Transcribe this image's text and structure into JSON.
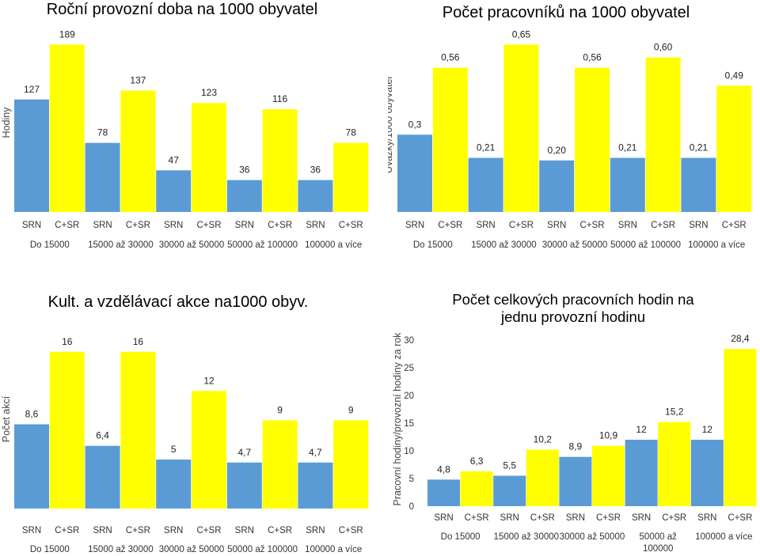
{
  "colors": {
    "srn": "#5B9BD5",
    "csr": "#FFFF00"
  },
  "chart_data": [
    {
      "type": "bar",
      "title": "Roční provozní doba na 1000 obyvatel",
      "ylabel": "Hodiny",
      "groups": [
        "Do 15000",
        "15000 až 30000",
        "30000 až 50000",
        "50000 až 100000",
        "100000 a více"
      ],
      "series": [
        {
          "name": "SRN",
          "values": [
            127,
            78,
            47,
            36,
            36
          ],
          "labels": [
            "127",
            "78",
            "47",
            "36",
            "36"
          ]
        },
        {
          "name": "C+SR",
          "values": [
            189,
            137,
            123,
            116,
            78
          ],
          "labels": [
            "189",
            "137",
            "123",
            "116",
            "78"
          ]
        }
      ],
      "ylim": [
        0,
        200
      ]
    },
    {
      "type": "bar",
      "title": "Počet pracovníků na 1000 obyvatel",
      "ylabel": "Úvazky/1000 obyvatel",
      "groups": [
        "Do 15000",
        "15000 až 30000",
        "30000 až 50000",
        "50000 až 100000",
        "100000 a více"
      ],
      "series": [
        {
          "name": "SRN",
          "values": [
            0.3,
            0.21,
            0.2,
            0.21,
            0.21
          ],
          "labels": [
            "0,3",
            "0,21",
            "0,20",
            "0,21",
            "0,21"
          ]
        },
        {
          "name": "C+SR",
          "values": [
            0.56,
            0.65,
            0.56,
            0.6,
            0.49
          ],
          "labels": [
            "0,56",
            "0,65",
            "0,56",
            "0,60",
            "0,49"
          ]
        }
      ],
      "ylim": [
        0,
        0.7
      ]
    },
    {
      "type": "bar",
      "title": "Kult. a vzdělávací akce na1000 obyv.",
      "ylabel": "Počet akcí",
      "groups": [
        "Do 15000",
        "15000 až 30000",
        "30000 až 50000",
        "50000 až 100000",
        "100000 a více"
      ],
      "series": [
        {
          "name": "SRN",
          "values": [
            8.6,
            6.4,
            5,
            4.7,
            4.7
          ],
          "labels": [
            "8,6",
            "6,4",
            "5",
            "4,7",
            "4,7"
          ]
        },
        {
          "name": "C+SR",
          "values": [
            16,
            16,
            12,
            9,
            9
          ],
          "labels": [
            "16",
            "16",
            "12",
            "9",
            "9"
          ]
        }
      ],
      "ylim": [
        0,
        18
      ]
    },
    {
      "type": "bar",
      "title": "Počet celkových pracovních hodin na jednu provozní hodinu",
      "title_lines": [
        "Počet celkových pracovních hodin na",
        "jednu provozní hodinu"
      ],
      "ylabel": "Pracovní hodiny/provozní hodiny za rok",
      "groups": [
        "Do 15000",
        "15000 až 30000",
        "30000 až 50000",
        "50000 až 100000",
        "100000 a více"
      ],
      "group_lines": [
        [
          "Do 15000"
        ],
        [
          "15000 až 30000"
        ],
        [
          "30000 až 50000"
        ],
        [
          "50000 až",
          "100000"
        ],
        [
          "100000 a více"
        ]
      ],
      "series": [
        {
          "name": "SRN",
          "values": [
            4.8,
            5.5,
            8.9,
            12,
            12
          ],
          "labels": [
            "4,8",
            "5,5",
            "8,9",
            "12",
            "12"
          ]
        },
        {
          "name": "C+SR",
          "values": [
            6.3,
            10.2,
            10.9,
            15.2,
            28.4
          ],
          "labels": [
            "6,3",
            "10,2",
            "10,9",
            "15,2",
            "28,4"
          ]
        }
      ],
      "ylim": [
        0,
        30
      ],
      "yticks": [
        0,
        5,
        10,
        15,
        20,
        25,
        30
      ]
    }
  ]
}
